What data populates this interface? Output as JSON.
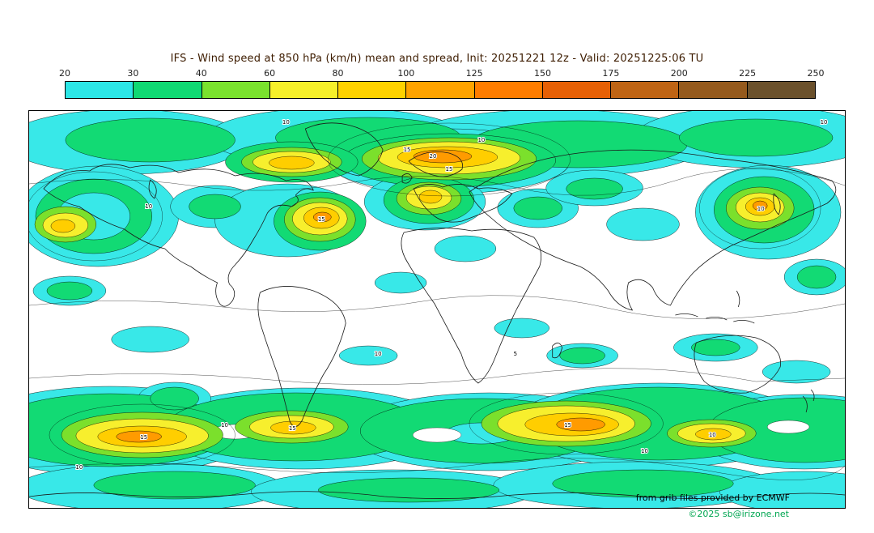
{
  "header": {
    "title": "IFS - Wind speed at 850 hPa (km/h) mean and spread, Init: 20251221 12z - Valid: 20251225:06 TU"
  },
  "colorbar": {
    "ticks": [
      "20",
      "30",
      "40",
      "60",
      "80",
      "100",
      "125",
      "150",
      "175",
      "200",
      "225",
      "250"
    ],
    "colors": [
      "#2ce6e6",
      "#10d973",
      "#7ae22e",
      "#f6f02a",
      "#ffd200",
      "#ffa300",
      "#ff7d00",
      "#e66005",
      "#bf6414",
      "#955a1d",
      "#6b512c"
    ]
  },
  "colors": {
    "cyan": "#38e8e8",
    "green": "#12da74",
    "light_green": "#7be02c",
    "yellow": "#f7ef2d",
    "gold": "#ffce00",
    "orange": "#ff9b00",
    "copyright_green": "#00a651",
    "title": "#3d1c00"
  },
  "map": {
    "contour_labels": [
      "10",
      "15",
      "10",
      "15",
      "20",
      "10",
      "15",
      "10",
      "15",
      "10",
      "15",
      "10",
      "10",
      "5",
      "10",
      "10",
      "15",
      "10"
    ]
  },
  "credits": {
    "source": "from grib files provided by ECMWF",
    "copyright": "©2025 sb@irizone.net"
  },
  "chart_data": {
    "type": "heatmap",
    "title": "IFS - Wind speed at 850 hPa (km/h) mean and spread, Init: 20251221 12z - Valid: 20251225:06 TU",
    "model": "IFS",
    "variable": "Wind speed at 850 hPa",
    "units": "km/h",
    "statistic": "mean and spread",
    "init": "20251221 12z",
    "valid": "20251225:06 TU",
    "projection": "equirectangular world map with coastlines",
    "colorbar_ticks": [
      20,
      30,
      40,
      60,
      80,
      100,
      125,
      150,
      175,
      200,
      225,
      250
    ],
    "colorbar_colors": [
      "#2ce6e6",
      "#10d973",
      "#7ae22e",
      "#f6f02a",
      "#ffd200",
      "#ffa300",
      "#ff7d00",
      "#e66005",
      "#bf6414",
      "#955a1d",
      "#6b512c"
    ],
    "spread_contour_label_values": [
      5,
      10,
      15,
      20
    ],
    "legend_position": "top",
    "notable_features": [
      {
        "region": "North Atlantic / Greenland-Iceland jet",
        "peak_band_kmh": "100-125"
      },
      {
        "region": "Central North Atlantic cutoff",
        "peak_band_kmh": "100-125"
      },
      {
        "region": "Northeast Pacific",
        "peak_band_kmh": "80-100"
      },
      {
        "region": "East Asia / Japan jet",
        "peak_band_kmh": "100-125"
      },
      {
        "region": "Southern Ocean south of Atlantic",
        "peak_band_kmh": "100-125"
      },
      {
        "region": "Southern Ocean south of Indian Ocean",
        "peak_band_kmh": "100-125"
      },
      {
        "region": "Southern Ocean south of Australia",
        "peak_band_kmh": "80-100"
      },
      {
        "region": "Tropics",
        "peak_band_kmh": "below 20 (white)"
      }
    ]
  }
}
